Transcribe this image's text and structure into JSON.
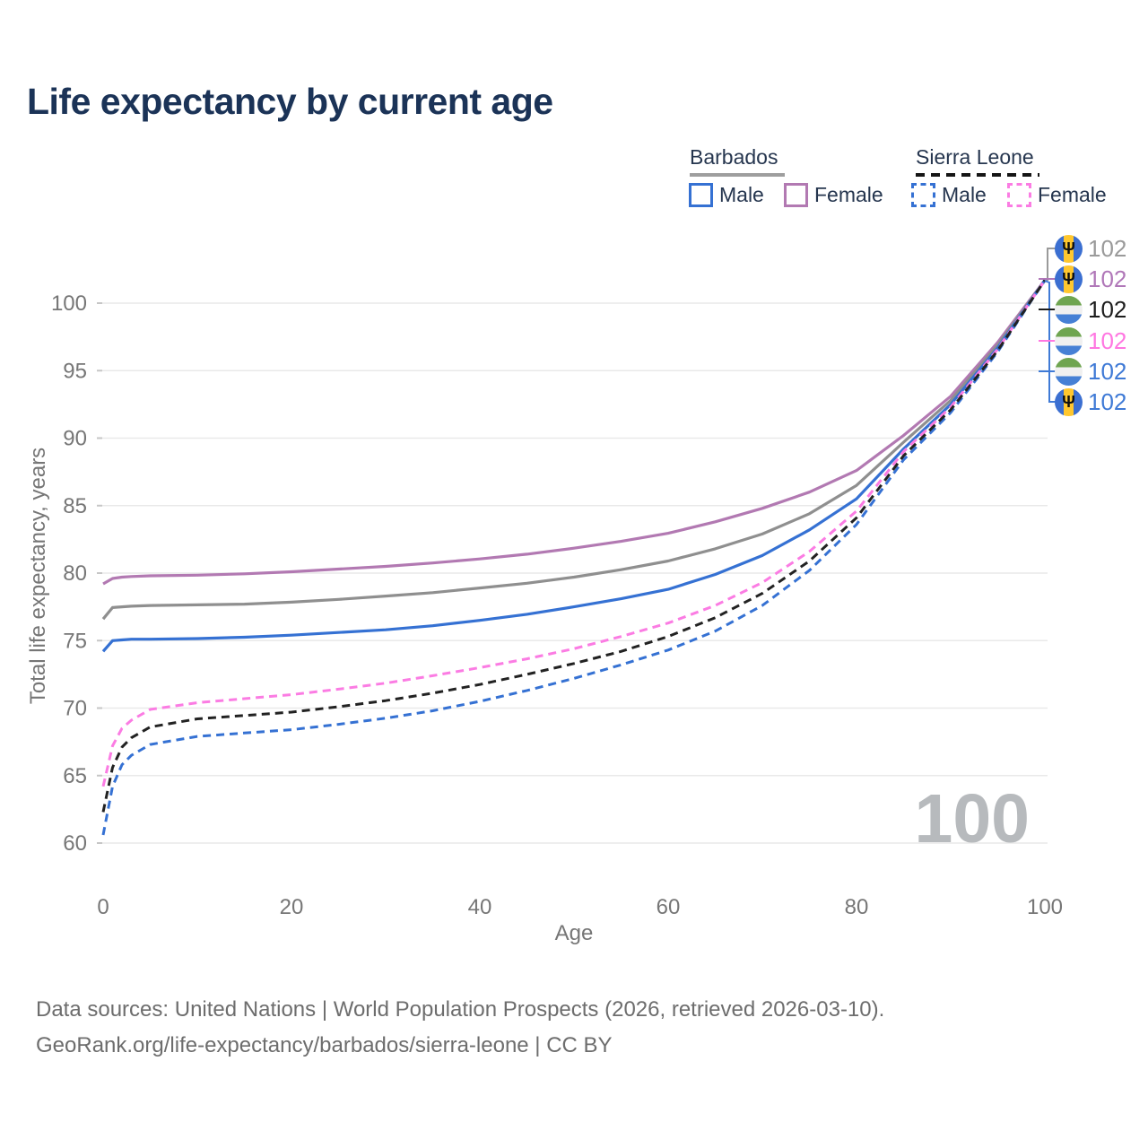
{
  "title": "Life expectancy by current age",
  "legend": {
    "barbados_label": "Barbados",
    "sierra_leone_label": "Sierra Leone",
    "male_label": "Male",
    "female_label": "Female"
  },
  "colors": {
    "blue_line": "#3571d3",
    "purple_line": "#b279b2",
    "gray_line": "#8f8f8f",
    "pink_line": "#fb7ce3",
    "black_line": "#222222",
    "barbados_underline": "#9e9e9e",
    "sierra_leone_underline": "#151515",
    "grid": "#e9e9e9",
    "axis_text": "#767676",
    "watermark": "#b7babd",
    "title_text": "#1b3357",
    "footer_text": "#6d6d6d"
  },
  "icons": {
    "barbados_flag": "barbados-flag-icon",
    "sierra_leone_flag": "sierra-leone-flag-icon",
    "trident_glyph": "Ψ"
  },
  "chart_data": {
    "type": "line",
    "title": "Life expectancy by current age",
    "xlabel": "Age",
    "ylabel": "Total life expectancy, years",
    "xlim": [
      0,
      100
    ],
    "ylim": [
      60,
      103
    ],
    "x_ticks": [
      0,
      20,
      40,
      60,
      80,
      100
    ],
    "y_ticks": [
      60,
      65,
      70,
      75,
      80,
      85,
      90,
      95,
      100
    ],
    "grid": "horizontal",
    "legend_position": "top-right",
    "watermark": "100",
    "x": [
      0,
      1,
      2,
      3,
      5,
      10,
      15,
      20,
      25,
      30,
      35,
      40,
      45,
      50,
      55,
      60,
      65,
      70,
      75,
      80,
      85,
      90,
      95,
      100
    ],
    "series": [
      {
        "name": "Barbados Female",
        "country": "Barbados",
        "sex": "Female",
        "style": "solid",
        "color": "#b279b2",
        "values": [
          79.2,
          79.6,
          79.7,
          79.75,
          79.8,
          79.85,
          79.95,
          80.1,
          80.3,
          80.5,
          80.75,
          81.05,
          81.4,
          81.85,
          82.35,
          82.95,
          83.8,
          84.8,
          86.0,
          87.6,
          90.2,
          93.1,
          97.1,
          101.7
        ]
      },
      {
        "name": "Barbados",
        "country": "Barbados",
        "sex": "Both",
        "style": "solid",
        "color": "#8f8f8f",
        "values": [
          76.6,
          77.45,
          77.5,
          77.55,
          77.6,
          77.65,
          77.7,
          77.85,
          78.05,
          78.3,
          78.55,
          78.9,
          79.25,
          79.7,
          80.25,
          80.9,
          81.8,
          82.9,
          84.4,
          86.5,
          89.7,
          92.8,
          96.9,
          101.7
        ]
      },
      {
        "name": "Barbados Male",
        "country": "Barbados",
        "sex": "Male",
        "style": "solid",
        "color": "#3571d3",
        "values": [
          74.2,
          75.0,
          75.05,
          75.1,
          75.1,
          75.15,
          75.25,
          75.4,
          75.6,
          75.8,
          76.1,
          76.5,
          76.95,
          77.5,
          78.1,
          78.8,
          79.9,
          81.3,
          83.2,
          85.5,
          89.2,
          92.5,
          96.7,
          101.7
        ]
      },
      {
        "name": "Sierra Leone Male",
        "country": "Sierra Leone",
        "sex": "Male",
        "style": "dashed",
        "color": "#3571d3",
        "values": [
          60.6,
          64.2,
          65.8,
          66.5,
          67.3,
          67.9,
          68.15,
          68.4,
          68.8,
          69.25,
          69.8,
          70.5,
          71.3,
          72.2,
          73.2,
          74.3,
          75.7,
          77.6,
          80.2,
          83.6,
          88.4,
          91.9,
          96.4,
          101.7
        ]
      },
      {
        "name": "Sierra Leone Female",
        "country": "Sierra Leone",
        "sex": "Female",
        "style": "dashed",
        "color": "#fb7ce3",
        "values": [
          64.2,
          67.2,
          68.5,
          69.1,
          69.9,
          70.4,
          70.7,
          71.0,
          71.4,
          71.85,
          72.4,
          73.0,
          73.65,
          74.4,
          75.3,
          76.3,
          77.6,
          79.3,
          81.6,
          84.6,
          89.0,
          92.3,
          96.6,
          101.7
        ]
      },
      {
        "name": "Sierra Leone",
        "country": "Sierra Leone",
        "sex": "Both",
        "style": "dashed",
        "color": "#222222",
        "values": [
          62.3,
          65.6,
          67.1,
          67.8,
          68.6,
          69.2,
          69.45,
          69.7,
          70.1,
          70.55,
          71.1,
          71.75,
          72.5,
          73.3,
          74.2,
          75.3,
          76.7,
          78.5,
          80.9,
          84.1,
          88.7,
          92.1,
          96.5,
          101.7
        ]
      }
    ]
  },
  "end_labels": [
    {
      "series": "Barbados",
      "flag": "barbados",
      "value": "102",
      "color": "#9a9a9a"
    },
    {
      "series": "Barbados Female",
      "flag": "barbados",
      "value": "102",
      "color": "#b077b8"
    },
    {
      "series": "Sierra Leone",
      "flag": "sierra-leone",
      "value": "102",
      "color": "#1d1d1d"
    },
    {
      "series": "Sierra Leone Female",
      "flag": "sierra-leone",
      "value": "102",
      "color": "#ff77e1"
    },
    {
      "series": "Sierra Leone Male",
      "flag": "sierra-leone",
      "value": "102",
      "color": "#3f7ad6"
    },
    {
      "series": "Barbados Male",
      "flag": "barbados",
      "value": "102",
      "color": "#3f7ad6"
    }
  ],
  "footer": {
    "line1": "Data sources: United Nations | World Population Prospects (2026, retrieved 2026-03-10).",
    "line2": "GeoRank.org/life-expectancy/barbados/sierra-leone | CC BY"
  }
}
